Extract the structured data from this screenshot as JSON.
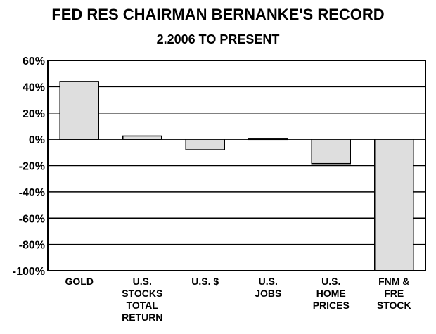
{
  "chart_data": {
    "type": "bar",
    "title": "FED RES CHAIRMAN BERNANKE'S RECORD",
    "subtitle": "2.2006 TO PRESENT",
    "xlabel": "",
    "ylabel": "",
    "ylim": [
      -100,
      60
    ],
    "yticks": [
      60,
      40,
      20,
      0,
      -20,
      -40,
      -60,
      -80,
      -100
    ],
    "ytick_labels": [
      "60%",
      "40%",
      "20%",
      "0%",
      "-20%",
      "-40%",
      "-60%",
      "-80%",
      "-100%"
    ],
    "grid": true,
    "categories": [
      [
        "GOLD"
      ],
      [
        "U.S.",
        "STOCKS",
        "TOTAL",
        "RETURN"
      ],
      [
        "U.S. $"
      ],
      [
        "U.S.",
        "JOBS"
      ],
      [
        "U.S.",
        "HOME",
        "PRICES"
      ],
      [
        "FNM &",
        "FRE",
        "STOCK"
      ]
    ],
    "values": [
      44,
      2.5,
      -8,
      0.7,
      -18.5,
      -100
    ],
    "colors": {
      "bar_fill": "#dedede",
      "bar_stroke": "#000000",
      "grid": "#000000"
    }
  }
}
